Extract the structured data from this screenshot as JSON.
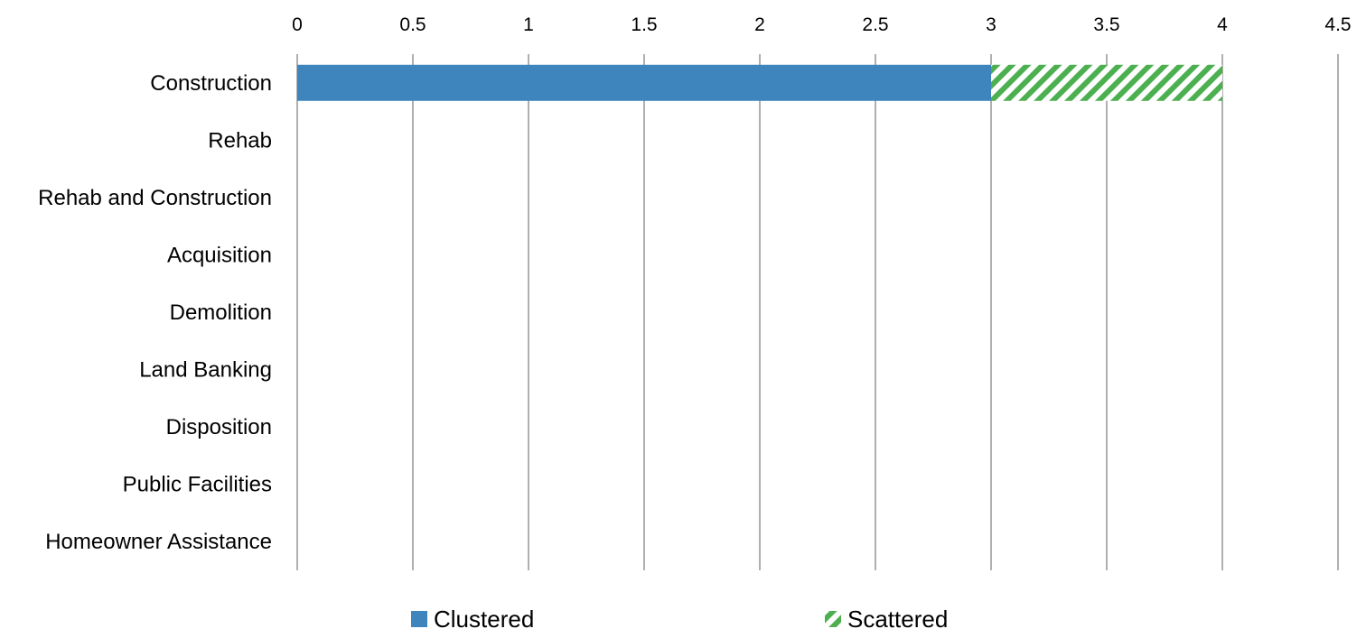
{
  "chart_data": {
    "type": "bar",
    "orientation": "horizontal",
    "stacked": true,
    "categories": [
      "Construction",
      "Rehab",
      "Rehab and Construction",
      "Acquisition",
      "Demolition",
      "Land Banking",
      "Disposition",
      "Public Facilities",
      "Homeowner Assistance"
    ],
    "series": [
      {
        "name": "Clustered",
        "values": [
          3,
          0,
          0,
          0,
          0,
          0,
          0,
          0,
          0
        ],
        "color": "#3d85bc",
        "pattern": "solid"
      },
      {
        "name": "Scattered",
        "values": [
          1,
          0,
          0,
          0,
          0,
          0,
          0,
          0,
          0
        ],
        "color": "#4caf50",
        "pattern": "diagonal-stripes"
      }
    ],
    "x_ticks": [
      "0",
      "0.5",
      "1",
      "1.5",
      "2",
      "2.5",
      "3",
      "3.5",
      "4",
      "4.5"
    ],
    "xlim": [
      0,
      4.5
    ],
    "x_axis_position": "top",
    "grid": "vertical",
    "legend_position": "bottom",
    "title": "",
    "xlabel": "",
    "ylabel": ""
  }
}
